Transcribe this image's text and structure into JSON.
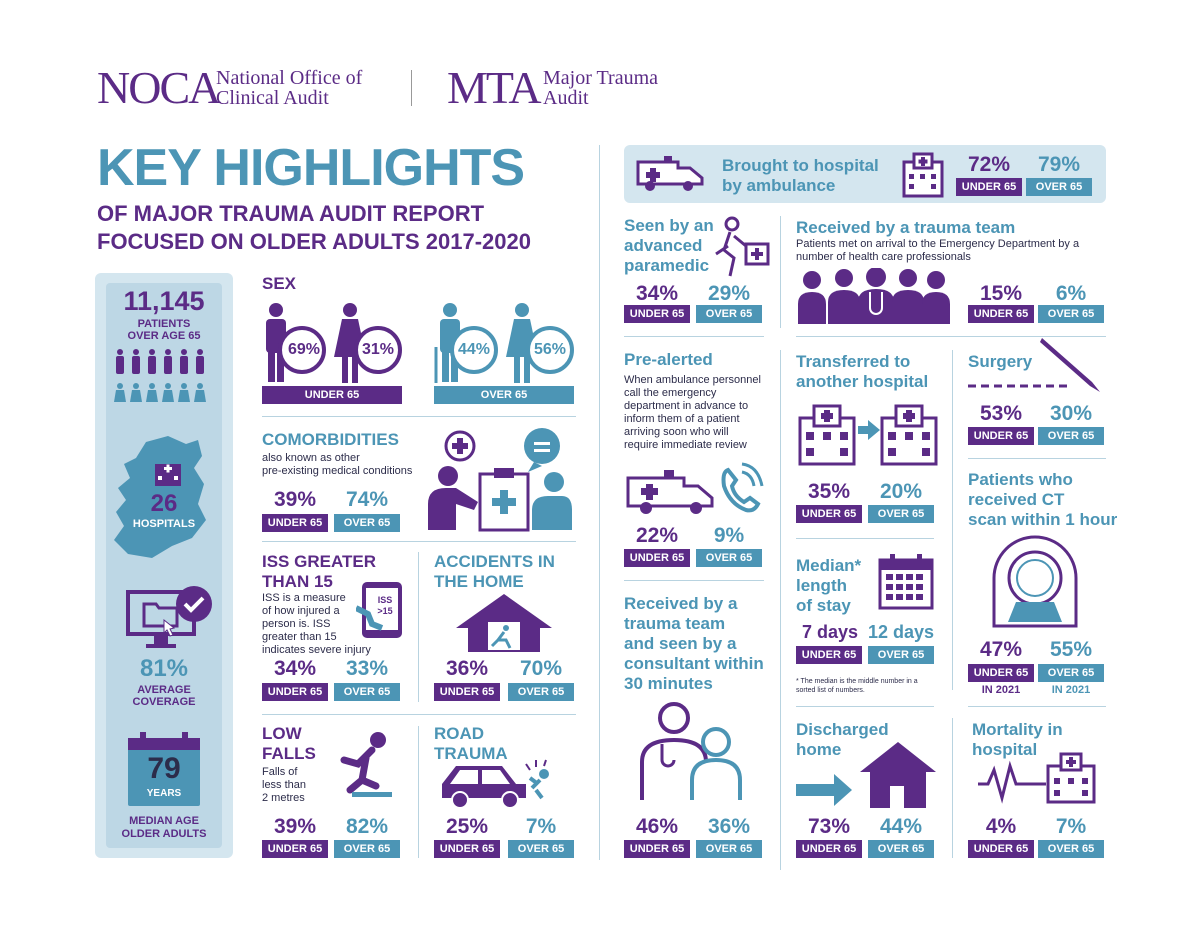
{
  "header": {
    "noca_logo": "NOCA",
    "noca_name_1": "National Office of",
    "noca_name_2": "Clinical Audit",
    "mta_logo": "MTA",
    "mta_name_1": "Major Trauma",
    "mta_name_2": "Audit"
  },
  "title": {
    "main": "KEY HIGHLIGHTS",
    "sub1": "OF MAJOR TRAUMA AUDIT REPORT",
    "sub2": "FOCUSED ON OLDER ADULTS 2017-2020"
  },
  "left_panel": {
    "patients_count": "11,145",
    "patients_label1": "PATIENTS",
    "patients_label2": "OVER AGE 65",
    "hospitals_count": "26",
    "hospitals_label": "HOSPITALS",
    "coverage_pct": "81%",
    "coverage_label1": "AVERAGE",
    "coverage_label2": "COVERAGE",
    "median_age": "79",
    "median_age_unit": "YEARS",
    "median_label1": "MEDIAN AGE",
    "median_label2": "OLDER ADULTS"
  },
  "labels": {
    "under": "UNDER 65",
    "over": "OVER 65",
    "in2021": "IN 2021"
  },
  "sex": {
    "title": "SEX",
    "under_male": "69%",
    "under_female": "31%",
    "over_male": "44%",
    "over_female": "56%"
  },
  "comorbidities": {
    "title": "COMORBIDITIES",
    "desc1": "also known as other",
    "desc2": "pre-existing medical conditions",
    "under": "39%",
    "over": "74%"
  },
  "iss": {
    "title1": "ISS GREATER",
    "title2": "THAN 15",
    "desc1": "ISS is a measure",
    "desc2": "of how injured a",
    "desc3": "person is. ISS",
    "desc4": "greater than 15",
    "desc5": "indicates severe injury",
    "icon_text1": "ISS",
    "icon_text2": ">15",
    "under": "34%",
    "over": "33%"
  },
  "home": {
    "title1": "ACCIDENTS IN",
    "title2": "THE HOME",
    "under": "36%",
    "over": "70%"
  },
  "low_falls": {
    "title1": "LOW",
    "title2": "FALLS",
    "desc1": "Falls of",
    "desc2": "less than",
    "desc3": "2 metres",
    "under": "39%",
    "over": "82%"
  },
  "road": {
    "title1": "ROAD",
    "title2": "TRAUMA",
    "under": "25%",
    "over": "7%"
  },
  "ambulance": {
    "title1": "Brought to hospital",
    "title2": "by ambulance",
    "under": "72%",
    "over": "79%"
  },
  "paramedic": {
    "title1": "Seen by an",
    "title2": "advanced",
    "title3": "paramedic",
    "under": "34%",
    "over": "29%"
  },
  "trauma_team": {
    "title": "Received by a trauma team",
    "desc1": "Patients met on arrival to the Emergency Department by a",
    "desc2": "number of health care professionals",
    "under": "15%",
    "over": "6%"
  },
  "prealerted": {
    "title": "Pre-alerted",
    "desc1": "When ambulance personnel",
    "desc2": "call the emergency",
    "desc3": "department in advance to",
    "desc4": "inform them of a patient",
    "desc5": "arriving soon who will",
    "desc6": "require immediate review",
    "under": "22%",
    "over": "9%"
  },
  "transferred": {
    "title1": "Transferred to",
    "title2": "another hospital",
    "under": "35%",
    "over": "20%"
  },
  "surgery": {
    "title": "Surgery",
    "under": "53%",
    "over": "30%"
  },
  "consultant": {
    "title1": "Received by a",
    "title2": "trauma team",
    "title3": "and seen by a",
    "title4": "consultant within",
    "title5": "30 minutes",
    "under": "46%",
    "over": "36%"
  },
  "length_of_stay": {
    "title1": "Median*",
    "title2": "length",
    "title3": "of stay",
    "under": "7 days",
    "over": "12 days",
    "note1": "* The median is the middle number in a",
    "note2": "sorted list of numbers."
  },
  "ct": {
    "title1": "Patients who",
    "title2": "received CT",
    "title3": "scan within 1 hour",
    "under": "47%",
    "over": "55%"
  },
  "discharged": {
    "title1": "Discharged",
    "title2": "home",
    "under": "73%",
    "over": "44%"
  },
  "mortality": {
    "title1": "Mortality in",
    "title2": "hospital",
    "under": "4%",
    "over": "7%"
  },
  "colors": {
    "purple": "#5b2b86",
    "teal": "#4c95b5",
    "light_blue": "#d4e6ef",
    "green": "#1b8a7a"
  }
}
